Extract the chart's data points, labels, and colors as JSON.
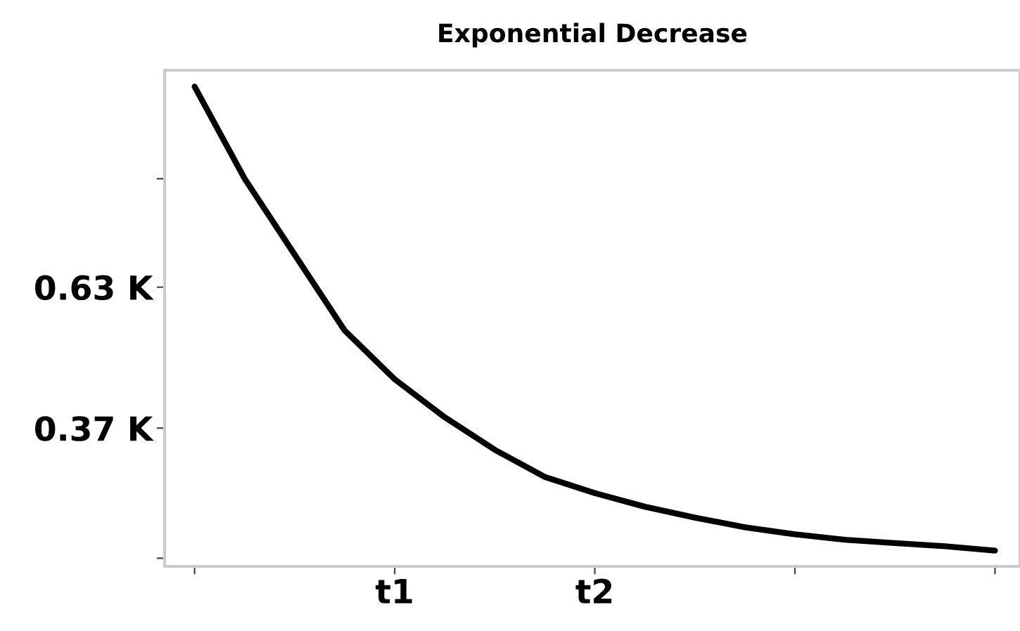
{
  "chart_data": {
    "type": "line",
    "title": "Exponential Decrease",
    "categories": [
      null,
      null,
      null,
      null,
      "t1",
      null,
      null,
      null,
      "t2",
      null,
      null,
      null,
      null,
      null,
      null,
      null,
      null
    ],
    "series": [
      {
        "color": "#000000",
        "values": [
          1.0,
          0.83,
          0.69,
          0.55,
          0.46,
          0.39,
          0.33,
          0.28,
          0.25,
          0.225,
          0.205,
          0.187,
          0.174,
          0.164,
          0.158,
          0.152,
          0.144
        ]
      }
    ],
    "ylim": [
      0.115,
      1.03
    ],
    "yticks": [
      {
        "value": 0.13,
        "label": null
      },
      {
        "value": 0.37,
        "label": "0.37 K"
      },
      {
        "value": 0.63,
        "label": "0.63 K"
      },
      {
        "value": 0.83,
        "label": null
      }
    ],
    "grid": false,
    "legend": false,
    "marker": "none",
    "line_style": "solid"
  }
}
